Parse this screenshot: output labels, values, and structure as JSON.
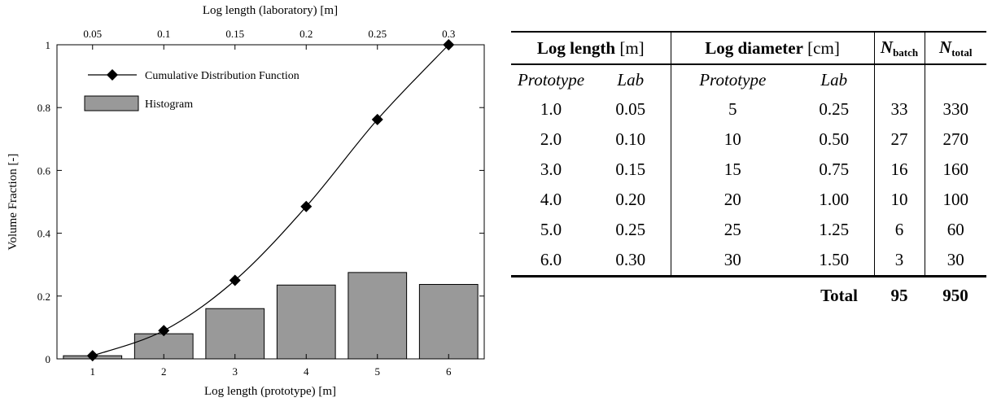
{
  "chart_data": {
    "type": "bar",
    "title": "",
    "xlabel": "Log length (prototype)  [m]",
    "x2label": "Log length (laboratory)  [m]",
    "ylabel": "Volume Fraction  [-]",
    "xlim": [
      0.5,
      6.5
    ],
    "ylim": [
      0,
      1
    ],
    "x_ticks": [
      "1",
      "2",
      "3",
      "4",
      "5",
      "6"
    ],
    "x2_ticks": [
      "0.05",
      "0.1",
      "0.15",
      "0.2",
      "0.25",
      "0.3"
    ],
    "y_ticks": [
      "0",
      "0.2",
      "0.4",
      "0.6",
      "0.8",
      "1"
    ],
    "y_tick_values": [
      0,
      0.2,
      0.4,
      0.6,
      0.8,
      1
    ],
    "grid": false,
    "legend_position": "top-left",
    "categories": [
      1,
      2,
      3,
      4,
      5,
      6
    ],
    "series": [
      {
        "name": "Histogram",
        "kind": "bar",
        "color": "#999999",
        "values": [
          0.01,
          0.08,
          0.16,
          0.235,
          0.275,
          0.237
        ]
      },
      {
        "name": "Cumulative Distribution Function",
        "kind": "line",
        "marker": "diamond",
        "color": "#000000",
        "values": [
          0.01,
          0.09,
          0.25,
          0.485,
          0.762,
          1.0
        ]
      }
    ]
  },
  "table": {
    "groups": [
      {
        "bold": "Log length",
        "unit": " [m]"
      },
      {
        "bold": "Log diameter",
        "unit": " [cm]"
      }
    ],
    "n_batch_sym": "N",
    "n_batch_sub": "batch",
    "n_total_sym": "N",
    "n_total_sub": "total",
    "subheaders": [
      "Prototype",
      "Lab",
      "Prototype",
      "Lab"
    ],
    "rows": [
      [
        "1.0",
        "0.05",
        "5",
        "0.25",
        "33",
        "330"
      ],
      [
        "2.0",
        "0.10",
        "10",
        "0.50",
        "27",
        "270"
      ],
      [
        "3.0",
        "0.15",
        "15",
        "0.75",
        "16",
        "160"
      ],
      [
        "4.0",
        "0.20",
        "20",
        "1.00",
        "10",
        "100"
      ],
      [
        "5.0",
        "0.25",
        "25",
        "1.25",
        "6",
        "60"
      ],
      [
        "6.0",
        "0.30",
        "30",
        "1.50",
        "3",
        "30"
      ]
    ],
    "total_label": "Total",
    "total_batch": "95",
    "total_all": "950"
  }
}
